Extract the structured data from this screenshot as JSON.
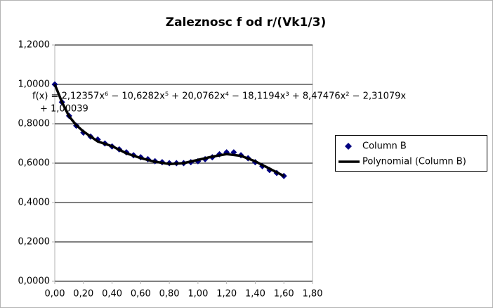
{
  "chart_data": {
    "type": "scatter",
    "title": "Zaleznosc f od r/(Vk1/3)",
    "trendline_equation": [
      "f(x) = 2,12357x⁶ − 10,6282x⁵ + 20,0762x⁴ − 18,1194x³ + 8,47476x² − 2,31079x",
      "+ 1,00039"
    ],
    "xlim": [
      0,
      1.8
    ],
    "xticks": [
      {
        "value": 0,
        "label": "0,00"
      },
      {
        "value": 0.2,
        "label": "0,20"
      },
      {
        "value": 0.4,
        "label": "0,40"
      },
      {
        "value": 0.6,
        "label": "0,60"
      },
      {
        "value": 0.8,
        "label": "0,80"
      },
      {
        "value": 1.0,
        "label": "1,00"
      },
      {
        "value": 1.2,
        "label": "1,20"
      },
      {
        "value": 1.4,
        "label": "1,40"
      },
      {
        "value": 1.6,
        "label": "1,60"
      },
      {
        "value": 1.8,
        "label": "1,80"
      }
    ],
    "ylim": [
      0,
      1.2
    ],
    "yticks": [
      {
        "value": 0,
        "label": "0,0000"
      },
      {
        "value": 0.2,
        "label": "0,2000"
      },
      {
        "value": 0.4,
        "label": "0,4000"
      },
      {
        "value": 0.6,
        "label": "0,6000"
      },
      {
        "value": 0.8,
        "label": "0,8000"
      },
      {
        "value": 1.0,
        "label": "1,0000"
      },
      {
        "value": 1.2,
        "label": "1,2000"
      }
    ],
    "grid": true,
    "legend": "right",
    "series": [
      {
        "name": "Column B",
        "color": "#000080",
        "marker": "diamond",
        "x": [
          0,
          0.05,
          0.1,
          0.15,
          0.2,
          0.25,
          0.3,
          0.35,
          0.4,
          0.45,
          0.5,
          0.55,
          0.6,
          0.65,
          0.7,
          0.75,
          0.8,
          0.85,
          0.9,
          0.95,
          1.0,
          1.05,
          1.1,
          1.15,
          1.2,
          1.25,
          1.3,
          1.35,
          1.4,
          1.45,
          1.5,
          1.55,
          1.6
        ],
        "values": [
          1.0,
          0.91,
          0.84,
          0.79,
          0.755,
          0.735,
          0.72,
          0.7,
          0.685,
          0.67,
          0.655,
          0.64,
          0.63,
          0.62,
          0.61,
          0.605,
          0.6,
          0.6,
          0.6,
          0.605,
          0.61,
          0.62,
          0.63,
          0.645,
          0.655,
          0.655,
          0.64,
          0.625,
          0.605,
          0.585,
          0.565,
          0.55,
          0.535
        ]
      },
      {
        "name": "Polynomial (Column B)",
        "color": "#000000",
        "marker": "line",
        "x": [
          0,
          0.05,
          0.1,
          0.15,
          0.2,
          0.3,
          0.4,
          0.5,
          0.6,
          0.7,
          0.8,
          0.9,
          1.0,
          1.1,
          1.2,
          1.3,
          1.4,
          1.5,
          1.6
        ],
        "values": [
          1.0004,
          0.91,
          0.8378,
          0.793,
          0.7611,
          0.71,
          0.6862,
          0.65,
          0.6256,
          0.607,
          0.5957,
          0.6,
          0.6165,
          0.633,
          0.6458,
          0.637,
          0.6093,
          0.572,
          0.5348
        ]
      }
    ]
  }
}
